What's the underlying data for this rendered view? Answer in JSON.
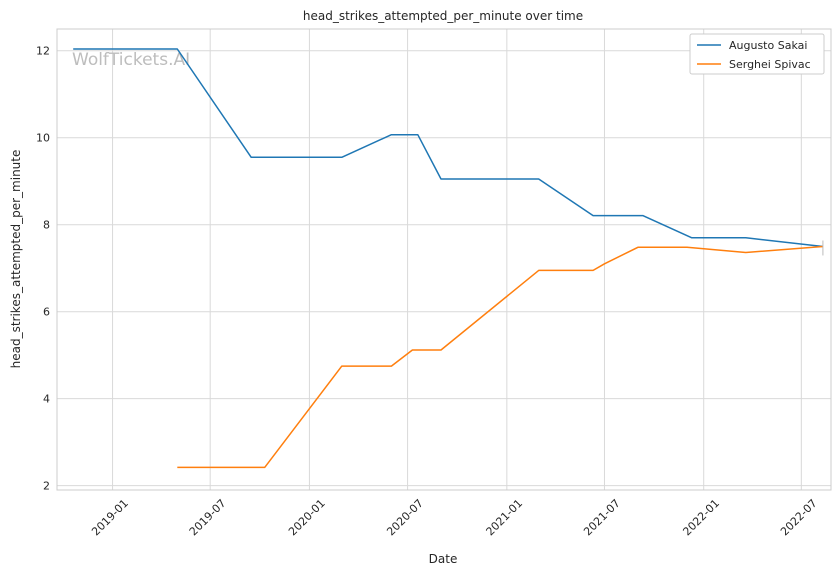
{
  "chart_data": {
    "type": "line",
    "title": "head_strikes_attempted_per_minute over time",
    "xlabel": "Date",
    "ylabel": "head_strikes_attempted_per_minute",
    "watermark": "WolfTickets.AI",
    "x_ticks": [
      "2019-01",
      "2019-07",
      "2020-01",
      "2020-07",
      "2021-01",
      "2021-07",
      "2022-01",
      "2022-07"
    ],
    "y_ticks": [
      2,
      4,
      6,
      8,
      10,
      12
    ],
    "xlim": [
      "2018-09-20",
      "2022-08-25"
    ],
    "ylim": [
      1.9,
      12.5
    ],
    "grid": true,
    "legend_position": "top-right",
    "colors": {
      "Augusto Sakai": "#1f77b4",
      "Serghei Spivac": "#ff7f0e"
    },
    "series": [
      {
        "name": "Augusto Sakai",
        "x": [
          "2018-10-20",
          "2019-05-01",
          "2019-09-15",
          "2020-03-01",
          "2020-06-01",
          "2020-07-20",
          "2020-09-01",
          "2021-03-01",
          "2021-06-10",
          "2021-09-10",
          "2021-12-10",
          "2022-03-20",
          "2022-08-10"
        ],
        "y": [
          12.04,
          12.04,
          9.55,
          9.55,
          10.07,
          10.07,
          9.05,
          9.05,
          8.21,
          8.21,
          7.7,
          7.7,
          7.5
        ]
      },
      {
        "name": "Serghei Spivac",
        "x": [
          "2019-05-01",
          "2019-10-10",
          "2020-03-01",
          "2020-06-01",
          "2020-07-10",
          "2020-09-01",
          "2021-03-01",
          "2021-06-10",
          "2021-07-01",
          "2021-09-01",
          "2021-12-01",
          "2022-03-20",
          "2022-08-10"
        ],
        "y": [
          2.42,
          2.42,
          4.75,
          4.75,
          5.12,
          5.12,
          6.95,
          6.95,
          7.1,
          7.48,
          7.48,
          7.36,
          7.5
        ]
      }
    ]
  }
}
